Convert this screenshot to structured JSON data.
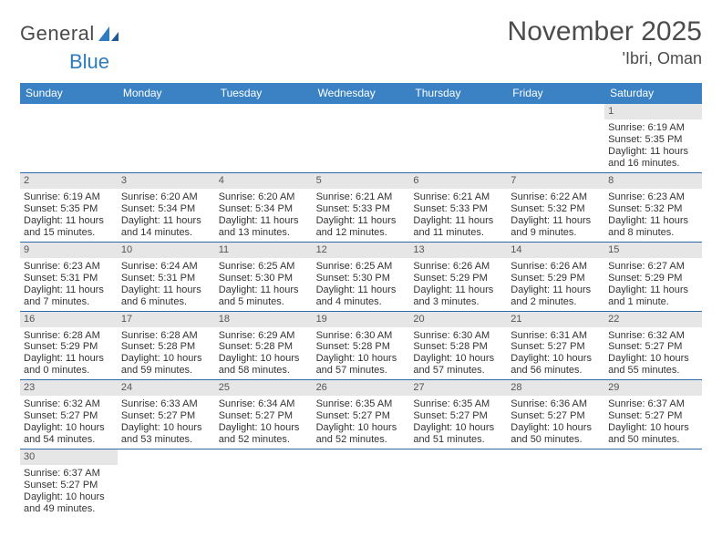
{
  "logo": {
    "text1": "General",
    "text2": "Blue"
  },
  "title": "November 2025",
  "location": "'Ibri, Oman",
  "colors": {
    "header_bg": "#3b82c4",
    "header_text": "#ffffff",
    "row_divider": "#2f6aa8",
    "daynum_bg": "#e6e6e6",
    "daynum_text": "#555555",
    "body_text": "#333333",
    "title_text": "#4c4c4c",
    "logo_blue": "#2f7bbf"
  },
  "day_headers": [
    "Sunday",
    "Monday",
    "Tuesday",
    "Wednesday",
    "Thursday",
    "Friday",
    "Saturday"
  ],
  "grid": {
    "leading_blanks": 6,
    "days": [
      {
        "n": 1,
        "sunrise": "6:19 AM",
        "sunset": "5:35 PM",
        "daylight": "11 hours and 16 minutes."
      },
      {
        "n": 2,
        "sunrise": "6:19 AM",
        "sunset": "5:35 PM",
        "daylight": "11 hours and 15 minutes."
      },
      {
        "n": 3,
        "sunrise": "6:20 AM",
        "sunset": "5:34 PM",
        "daylight": "11 hours and 14 minutes."
      },
      {
        "n": 4,
        "sunrise": "6:20 AM",
        "sunset": "5:34 PM",
        "daylight": "11 hours and 13 minutes."
      },
      {
        "n": 5,
        "sunrise": "6:21 AM",
        "sunset": "5:33 PM",
        "daylight": "11 hours and 12 minutes."
      },
      {
        "n": 6,
        "sunrise": "6:21 AM",
        "sunset": "5:33 PM",
        "daylight": "11 hours and 11 minutes."
      },
      {
        "n": 7,
        "sunrise": "6:22 AM",
        "sunset": "5:32 PM",
        "daylight": "11 hours and 9 minutes."
      },
      {
        "n": 8,
        "sunrise": "6:23 AM",
        "sunset": "5:32 PM",
        "daylight": "11 hours and 8 minutes."
      },
      {
        "n": 9,
        "sunrise": "6:23 AM",
        "sunset": "5:31 PM",
        "daylight": "11 hours and 7 minutes."
      },
      {
        "n": 10,
        "sunrise": "6:24 AM",
        "sunset": "5:31 PM",
        "daylight": "11 hours and 6 minutes."
      },
      {
        "n": 11,
        "sunrise": "6:25 AM",
        "sunset": "5:30 PM",
        "daylight": "11 hours and 5 minutes."
      },
      {
        "n": 12,
        "sunrise": "6:25 AM",
        "sunset": "5:30 PM",
        "daylight": "11 hours and 4 minutes."
      },
      {
        "n": 13,
        "sunrise": "6:26 AM",
        "sunset": "5:29 PM",
        "daylight": "11 hours and 3 minutes."
      },
      {
        "n": 14,
        "sunrise": "6:26 AM",
        "sunset": "5:29 PM",
        "daylight": "11 hours and 2 minutes."
      },
      {
        "n": 15,
        "sunrise": "6:27 AM",
        "sunset": "5:29 PM",
        "daylight": "11 hours and 1 minute."
      },
      {
        "n": 16,
        "sunrise": "6:28 AM",
        "sunset": "5:29 PM",
        "daylight": "11 hours and 0 minutes."
      },
      {
        "n": 17,
        "sunrise": "6:28 AM",
        "sunset": "5:28 PM",
        "daylight": "10 hours and 59 minutes."
      },
      {
        "n": 18,
        "sunrise": "6:29 AM",
        "sunset": "5:28 PM",
        "daylight": "10 hours and 58 minutes."
      },
      {
        "n": 19,
        "sunrise": "6:30 AM",
        "sunset": "5:28 PM",
        "daylight": "10 hours and 57 minutes."
      },
      {
        "n": 20,
        "sunrise": "6:30 AM",
        "sunset": "5:28 PM",
        "daylight": "10 hours and 57 minutes."
      },
      {
        "n": 21,
        "sunrise": "6:31 AM",
        "sunset": "5:27 PM",
        "daylight": "10 hours and 56 minutes."
      },
      {
        "n": 22,
        "sunrise": "6:32 AM",
        "sunset": "5:27 PM",
        "daylight": "10 hours and 55 minutes."
      },
      {
        "n": 23,
        "sunrise": "6:32 AM",
        "sunset": "5:27 PM",
        "daylight": "10 hours and 54 minutes."
      },
      {
        "n": 24,
        "sunrise": "6:33 AM",
        "sunset": "5:27 PM",
        "daylight": "10 hours and 53 minutes."
      },
      {
        "n": 25,
        "sunrise": "6:34 AM",
        "sunset": "5:27 PM",
        "daylight": "10 hours and 52 minutes."
      },
      {
        "n": 26,
        "sunrise": "6:35 AM",
        "sunset": "5:27 PM",
        "daylight": "10 hours and 52 minutes."
      },
      {
        "n": 27,
        "sunrise": "6:35 AM",
        "sunset": "5:27 PM",
        "daylight": "10 hours and 51 minutes."
      },
      {
        "n": 28,
        "sunrise": "6:36 AM",
        "sunset": "5:27 PM",
        "daylight": "10 hours and 50 minutes."
      },
      {
        "n": 29,
        "sunrise": "6:37 AM",
        "sunset": "5:27 PM",
        "daylight": "10 hours and 50 minutes."
      },
      {
        "n": 30,
        "sunrise": "6:37 AM",
        "sunset": "5:27 PM",
        "daylight": "10 hours and 49 minutes."
      }
    ]
  },
  "labels": {
    "sunrise": "Sunrise:",
    "sunset": "Sunset:",
    "daylight": "Daylight:"
  }
}
